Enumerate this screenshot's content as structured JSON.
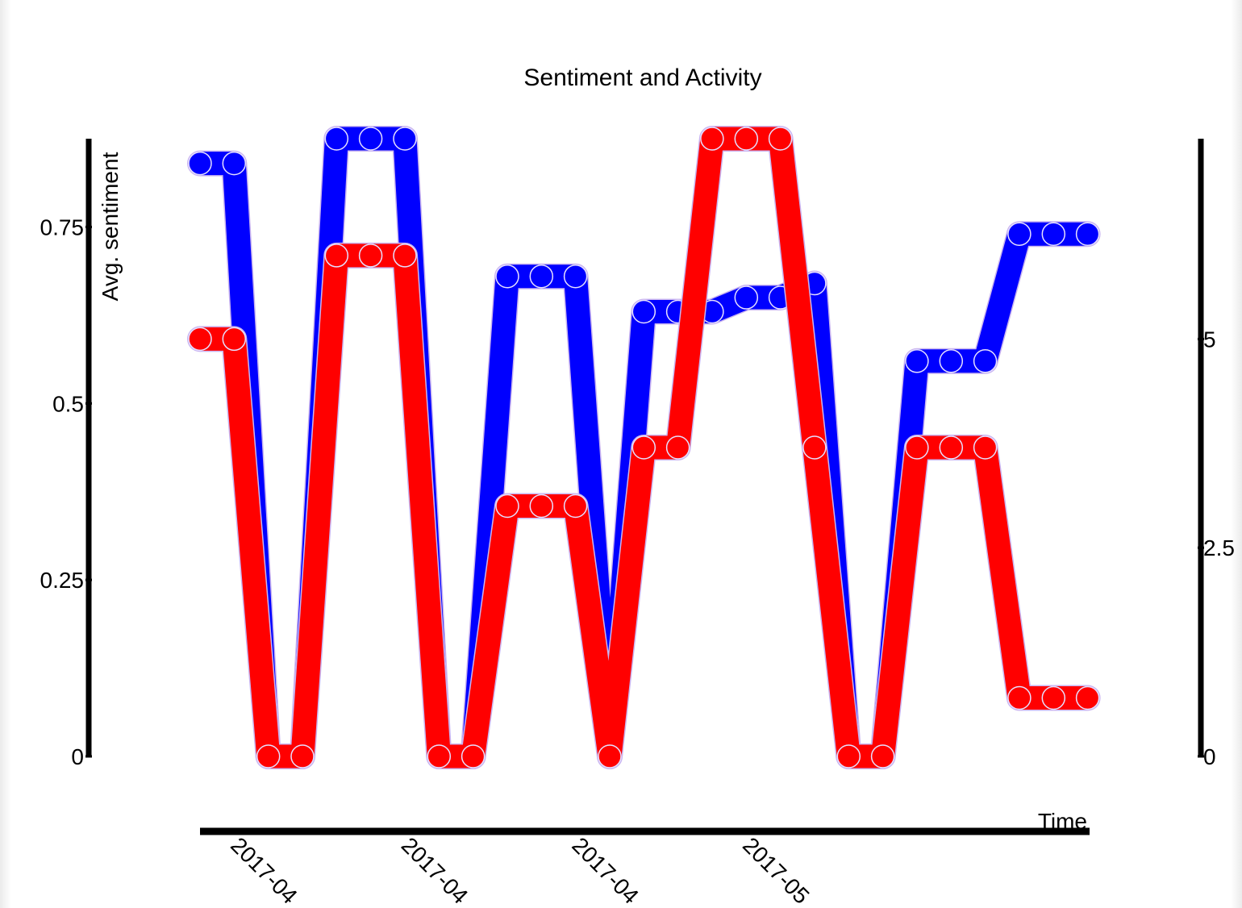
{
  "chart_data": {
    "type": "line",
    "title": "Sentiment and Activity",
    "xlabel": "Time",
    "ylabel": "Avg. sentiment",
    "y2label": "",
    "x_tick_labels": [
      "2017-04",
      "2017-04",
      "2017-04",
      "2017-05"
    ],
    "y_ticks": [
      {
        "value": 0,
        "label": "0"
      },
      {
        "value": 0.25,
        "label": "0.25"
      },
      {
        "value": 0.5,
        "label": "0.5"
      },
      {
        "value": 0.75,
        "label": "0.75"
      }
    ],
    "y2_ticks": [
      {
        "value": 0,
        "label": "0"
      },
      {
        "value": 2.5,
        "label": "2.5"
      },
      {
        "value": 5,
        "label": "5"
      }
    ],
    "ylim": [
      0,
      0.875
    ],
    "y2lim": [
      0,
      7.4
    ],
    "x": [
      0,
      1,
      2,
      3,
      4,
      5,
      6,
      7,
      8,
      9,
      10,
      11,
      12,
      13,
      14,
      15,
      16,
      17,
      18,
      19,
      20,
      21,
      22,
      23,
      24,
      25,
      26
    ],
    "series": [
      {
        "axis": "left",
        "color": "#0000ff",
        "values": [
          0.84,
          0.84,
          0,
          0,
          0.875,
          0.875,
          0.875,
          0,
          0,
          0.68,
          0.68,
          0.68,
          0,
          0.63,
          0.63,
          0.63,
          0.65,
          0.65,
          0.67,
          0,
          0,
          0.56,
          0.56,
          0.56,
          0.74,
          0.74,
          0.74
        ]
      },
      {
        "axis": "right",
        "color": "#ff0000",
        "values": [
          5,
          5,
          0,
          0,
          6,
          6,
          6,
          0,
          0,
          3,
          3,
          3,
          0,
          3.7,
          3.7,
          7.4,
          7.4,
          7.4,
          3.7,
          0,
          0,
          3.7,
          3.7,
          3.7,
          0.7,
          0.7,
          0.7
        ]
      }
    ],
    "grid": false,
    "legend": "none"
  }
}
